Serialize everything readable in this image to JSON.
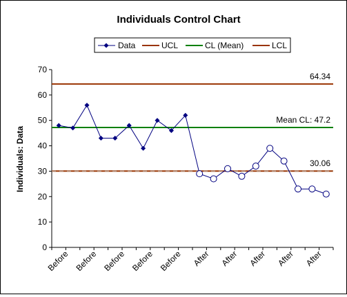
{
  "chart_data": {
    "type": "line",
    "title": "Individuals Control Chart",
    "ylabel": "Individuals: Data",
    "xlabel": "",
    "ylim": [
      0,
      70
    ],
    "y_ticks": [
      "0",
      "10",
      "20",
      "30",
      "40",
      "50",
      "60",
      "70"
    ],
    "grid": false,
    "legend_position": "top",
    "x_tick_labels": [
      "Before",
      "Before",
      "Before",
      "Before",
      "Before",
      "After",
      "After",
      "After",
      "After",
      "After"
    ],
    "x": [
      1,
      2,
      3,
      4,
      5,
      6,
      7,
      8,
      9,
      10,
      11,
      12,
      13,
      14,
      15,
      16,
      17,
      18,
      19,
      20
    ],
    "series": [
      {
        "name": "Data",
        "color": "#000080",
        "values": [
          48,
          47,
          56,
          43,
          43,
          48,
          39,
          50,
          46,
          52,
          29,
          27,
          31,
          28,
          32,
          39,
          34,
          23,
          23,
          21
        ],
        "groups": [
          "before",
          "before",
          "before",
          "before",
          "before",
          "before",
          "before",
          "before",
          "before",
          "before",
          "after",
          "after",
          "after",
          "after",
          "after",
          "after",
          "after",
          "after",
          "after",
          "after"
        ]
      },
      {
        "name": "UCL",
        "color": "#993300",
        "value": 64.34
      },
      {
        "name": "CL (Mean)",
        "color": "#008000",
        "value": 47.2
      },
      {
        "name": "LCL",
        "color": "#993300",
        "value": 30.06
      }
    ],
    "annotations": {
      "ucl_label": "64.34",
      "cl_label": "Mean CL: 47.2",
      "lcl_label": "30.06"
    }
  }
}
